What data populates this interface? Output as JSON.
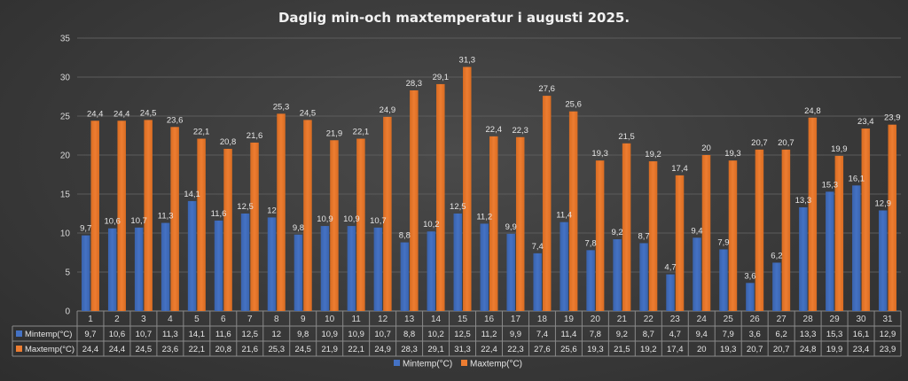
{
  "chart_data": {
    "type": "bar",
    "title": "Daglig min-och maxtemperatur i augusti 2025.",
    "categories": [
      "1",
      "2",
      "3",
      "4",
      "5",
      "6",
      "7",
      "8",
      "9",
      "10",
      "11",
      "12",
      "13",
      "14",
      "15",
      "16",
      "17",
      "18",
      "19",
      "20",
      "21",
      "22",
      "23",
      "24",
      "25",
      "26",
      "27",
      "28",
      "29",
      "30",
      "31"
    ],
    "series": [
      {
        "name": "Mintemp(°C)",
        "color": "#4472c4",
        "values": [
          9.7,
          10.6,
          10.7,
          11.3,
          14.1,
          11.6,
          12.5,
          12,
          9.8,
          10.9,
          10.9,
          10.7,
          8.8,
          10.2,
          12.5,
          11.2,
          9.9,
          7.4,
          11.4,
          7.8,
          9.2,
          8.7,
          4.7,
          9.4,
          7.9,
          3.6,
          6.2,
          13.3,
          15.3,
          16.1,
          12.9
        ],
        "labels": [
          "9,7",
          "10,6",
          "10,7",
          "11,3",
          "14,1",
          "11,6",
          "12,5",
          "12",
          "9,8",
          "10,9",
          "10,9",
          "10,7",
          "8,8",
          "10,2",
          "12,5",
          "11,2",
          "9,9",
          "7,4",
          "11,4",
          "7,8",
          "9,2",
          "8,7",
          "4,7",
          "9,4",
          "7,9",
          "3,6",
          "6,2",
          "13,3",
          "15,3",
          "16,1",
          "12,9"
        ]
      },
      {
        "name": "Maxtemp(°C)",
        "color": "#ed7d31",
        "values": [
          24.4,
          24.4,
          24.5,
          23.6,
          22.1,
          20.8,
          21.6,
          25.3,
          24.5,
          21.9,
          22.1,
          24.9,
          28.3,
          29.1,
          31.3,
          22.4,
          22.3,
          27.6,
          25.6,
          19.3,
          21.5,
          19.2,
          17.4,
          20,
          19.3,
          20.7,
          20.7,
          24.8,
          19.9,
          23.4,
          23.9
        ],
        "labels": [
          "24,4",
          "24,4",
          "24,5",
          "23,6",
          "22,1",
          "20,8",
          "21,6",
          "25,3",
          "24,5",
          "21,9",
          "22,1",
          "24,9",
          "28,3",
          "29,1",
          "31,3",
          "22,4",
          "22,3",
          "27,6",
          "25,6",
          "19,3",
          "21,5",
          "19,2",
          "17,4",
          "20",
          "19,3",
          "20,7",
          "20,7",
          "24,8",
          "19,9",
          "23,4",
          "23,9"
        ]
      }
    ],
    "yticks": [
      "0",
      "5",
      "10",
      "15",
      "20",
      "25",
      "30",
      "35"
    ],
    "ylim": [
      0,
      35
    ],
    "grid": true,
    "legend": "bottom",
    "data_table": true
  }
}
